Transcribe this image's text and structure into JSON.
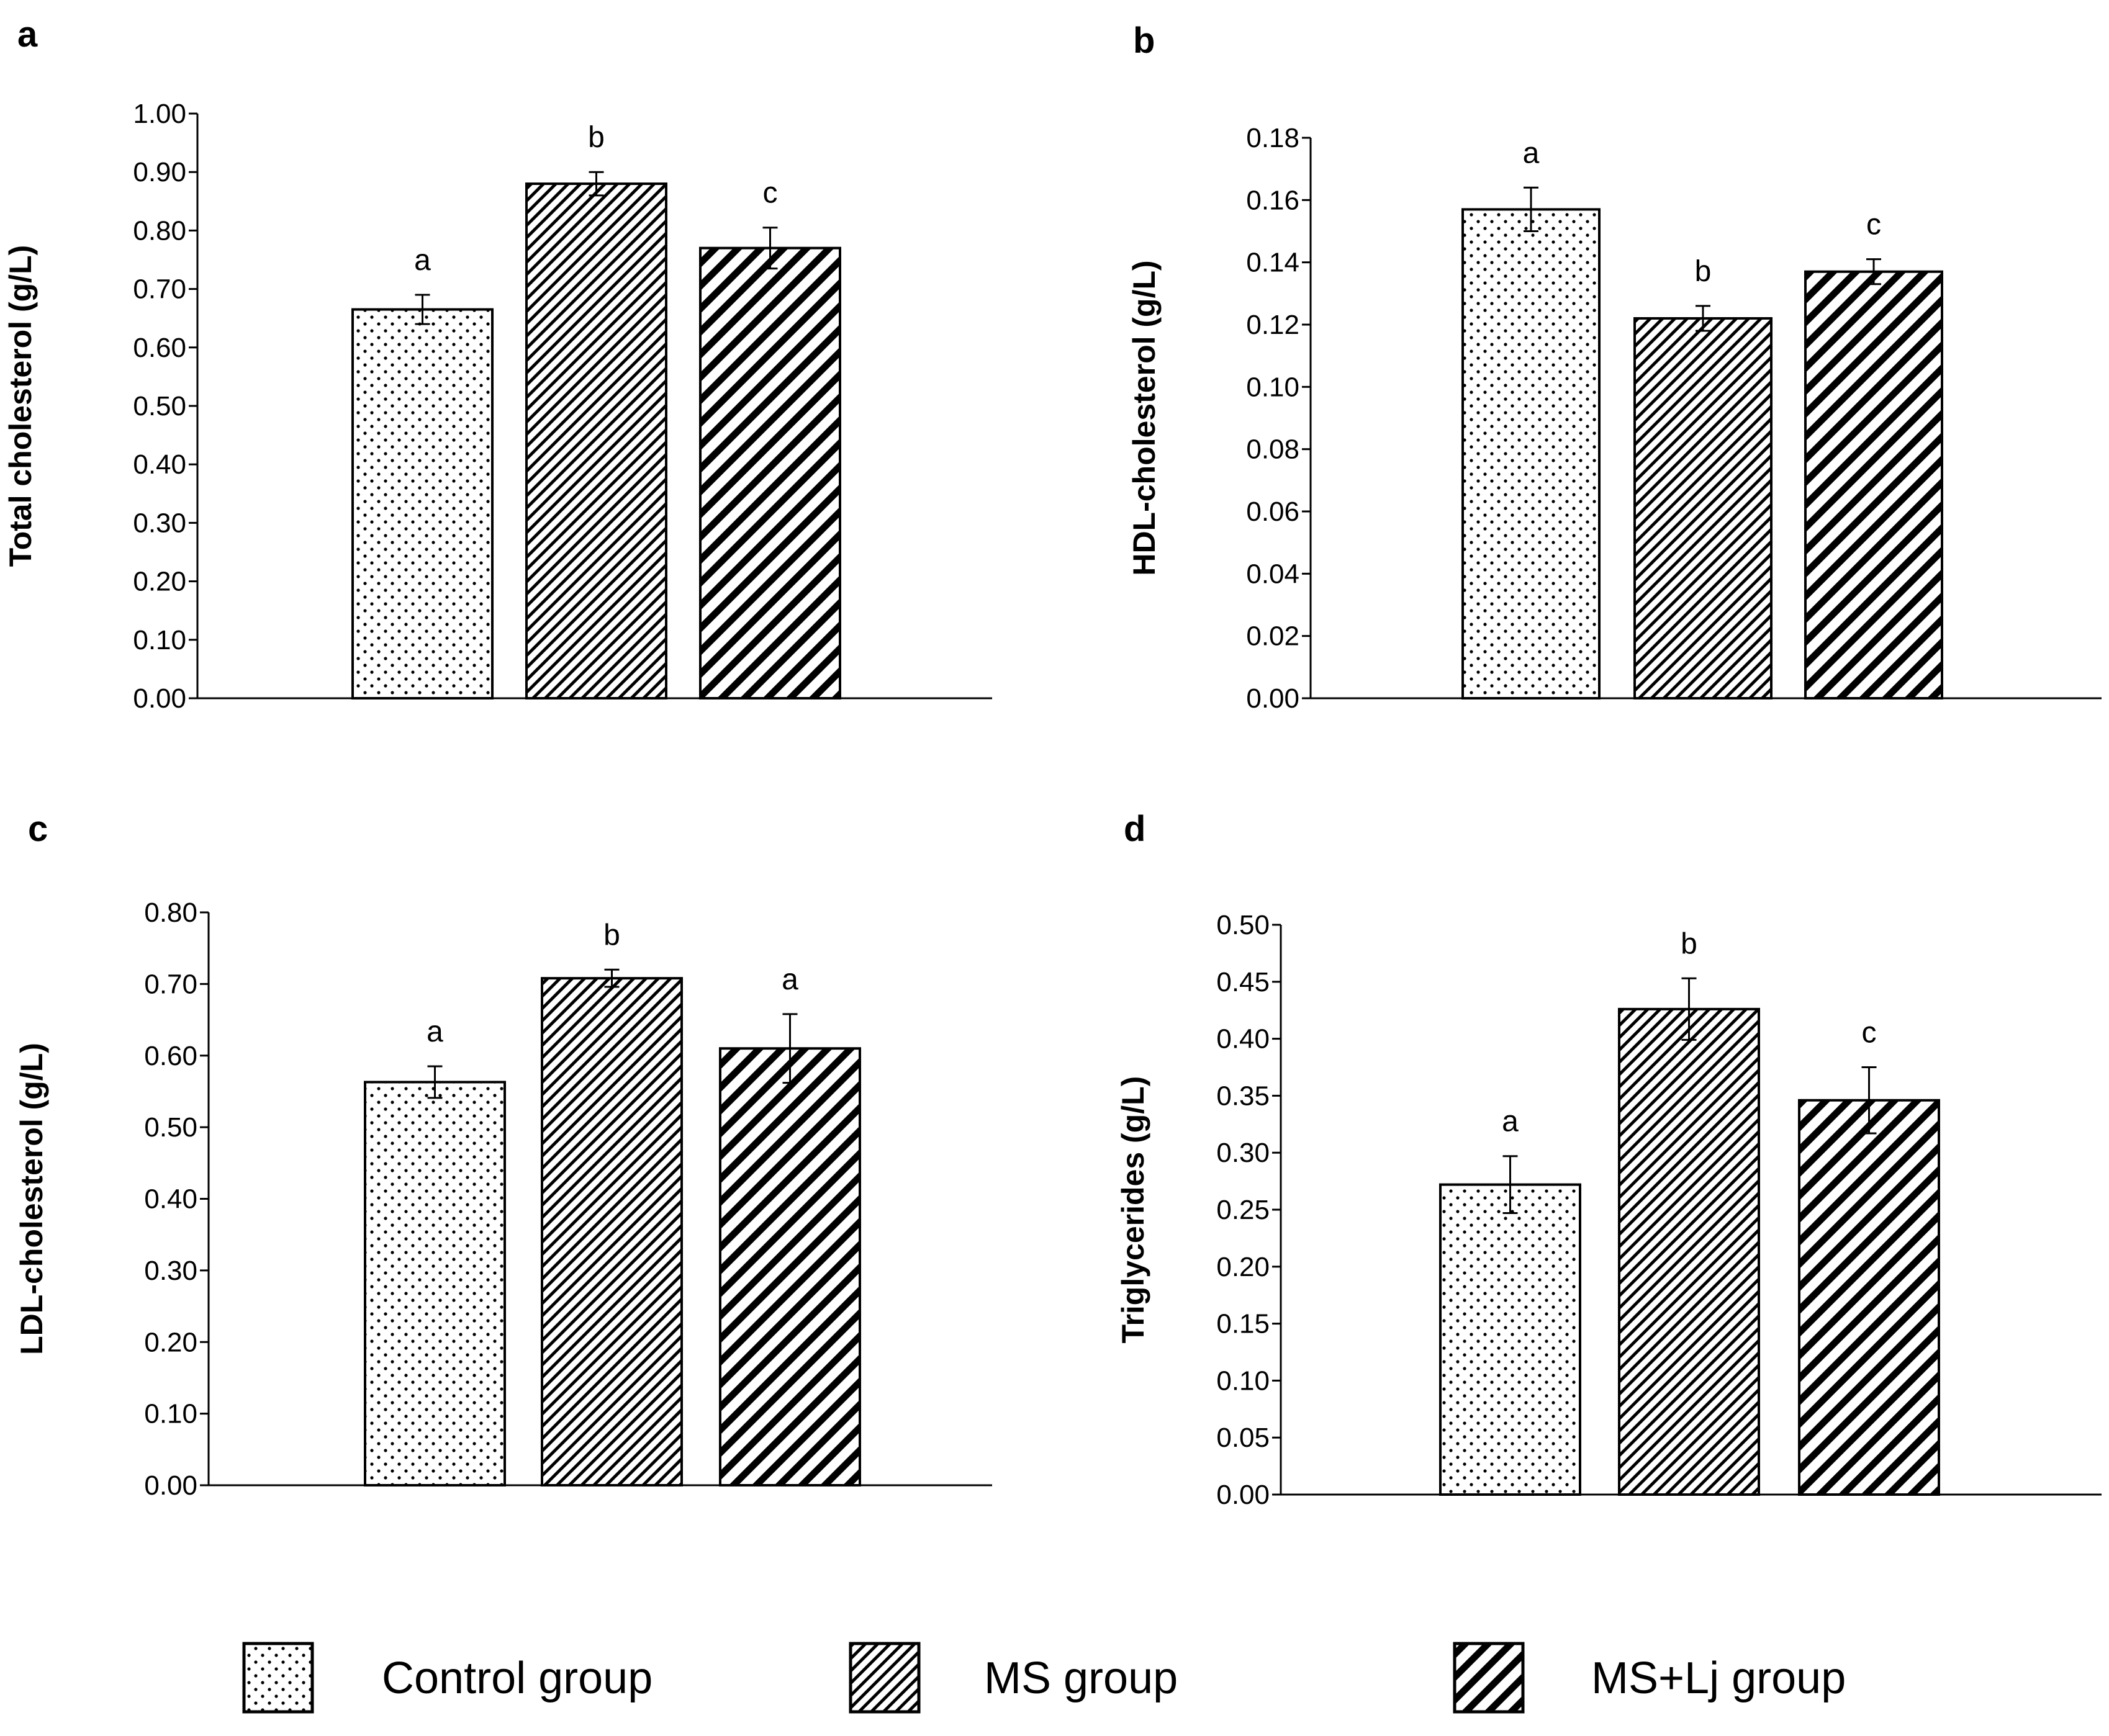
{
  "groups": [
    "Control group",
    "MS group",
    "MS+Lj group"
  ],
  "legend": [
    {
      "label": "Control group",
      "pattern": "dots"
    },
    {
      "label": "MS group",
      "pattern": "fine-hatch"
    },
    {
      "label": "MS+Lj group",
      "pattern": "coarse-hatch"
    }
  ],
  "colors": {
    "fill": "#ffffff",
    "stroke": "#000000",
    "axis": "#000000"
  },
  "chart_data": [
    {
      "panel": "a",
      "type": "bar",
      "ylabel": "Total cholesterol (g/L)",
      "ylim": [
        0,
        1.0
      ],
      "ticks": [
        "0.00",
        "0.10",
        "0.20",
        "0.30",
        "0.40",
        "0.50",
        "0.60",
        "0.70",
        "0.80",
        "0.90",
        "1.00"
      ],
      "categories": [
        "Control group",
        "MS group",
        "MS+Lj group"
      ],
      "values": [
        0.665,
        0.88,
        0.77
      ],
      "errors": [
        0.025,
        0.02,
        0.035
      ],
      "significance": [
        "a",
        "b",
        "c"
      ]
    },
    {
      "panel": "b",
      "type": "bar",
      "ylabel": "HDL-cholesterol (g/L)",
      "ylim": [
        0,
        0.18
      ],
      "ticks": [
        "0.00",
        "0.02",
        "0.04",
        "0.06",
        "0.08",
        "0.10",
        "0.12",
        "0.14",
        "0.16",
        "0.18"
      ],
      "categories": [
        "Control group",
        "MS group",
        "MS+Lj group"
      ],
      "values": [
        0.157,
        0.122,
        0.137
      ],
      "errors": [
        0.007,
        0.004,
        0.004
      ],
      "significance": [
        "a",
        "b",
        "c"
      ]
    },
    {
      "panel": "c",
      "type": "bar",
      "ylabel": "LDL-cholesterol (g/L)",
      "ylim": [
        0,
        0.8
      ],
      "ticks": [
        "0.00",
        "0.10",
        "0.20",
        "0.30",
        "0.40",
        "0.50",
        "0.60",
        "0.70",
        "0.80"
      ],
      "categories": [
        "Control group",
        "MS group",
        "MS+Lj group"
      ],
      "values": [
        0.563,
        0.708,
        0.61
      ],
      "errors": [
        0.022,
        0.012,
        0.048
      ],
      "significance": [
        "a",
        "b",
        "a"
      ]
    },
    {
      "panel": "d",
      "type": "bar",
      "ylabel": "Triglycerides (g/L)",
      "ylim": [
        0,
        0.5
      ],
      "ticks": [
        "0.00",
        "0.05",
        "0.10",
        "0.15",
        "0.20",
        "0.25",
        "0.30",
        "0.35",
        "0.40",
        "0.45",
        "0.50"
      ],
      "categories": [
        "Control group",
        "MS group",
        "MS+Lj group"
      ],
      "values": [
        0.272,
        0.426,
        0.346
      ],
      "errors": [
        0.025,
        0.027,
        0.029
      ],
      "significance": [
        "a",
        "b",
        "c"
      ]
    }
  ]
}
